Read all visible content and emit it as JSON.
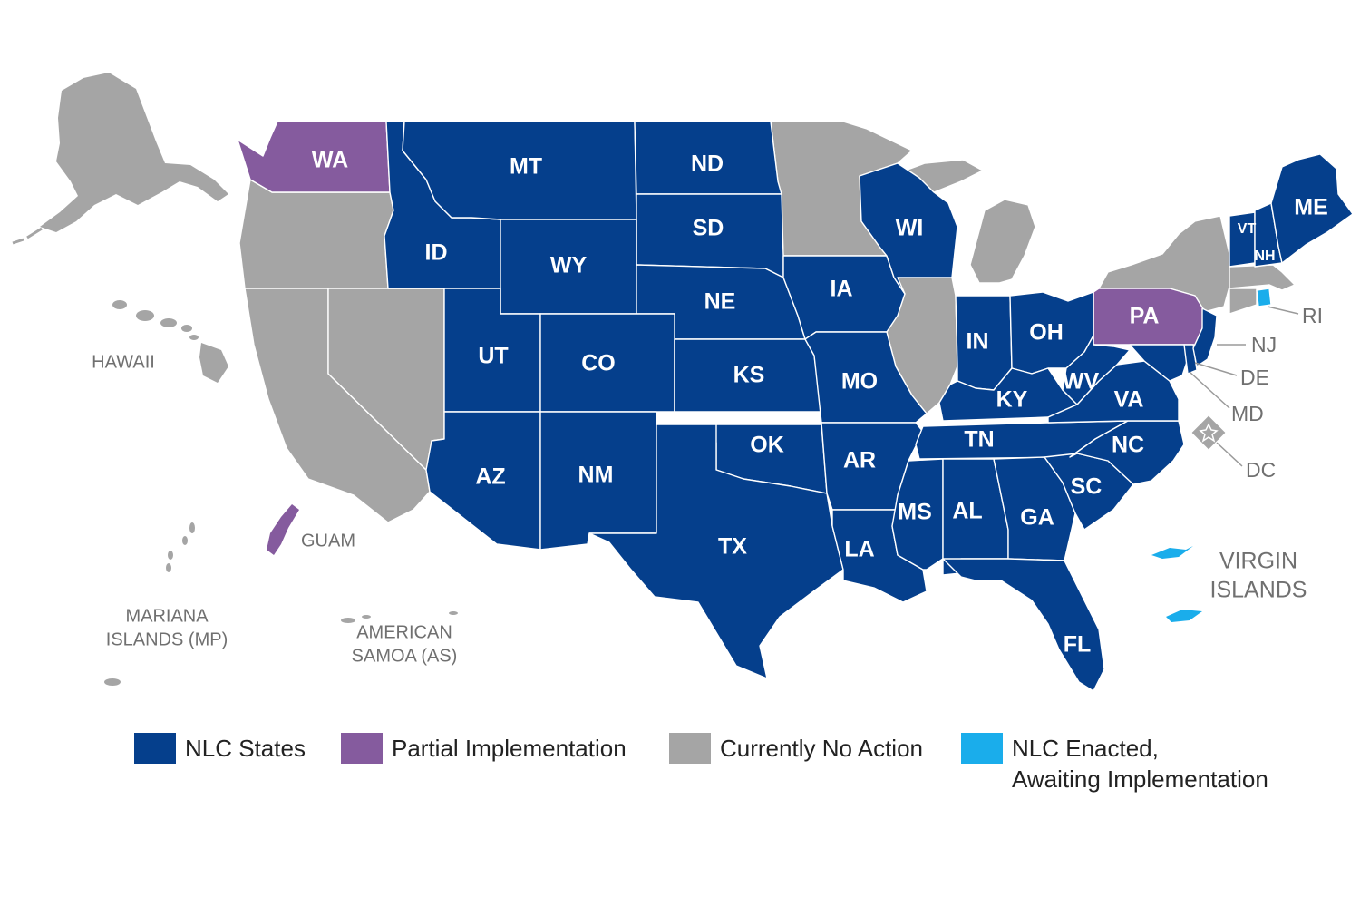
{
  "colors": {
    "nlc": "#053F8C",
    "partial": "#855B9E",
    "none": "#A5A5A5",
    "enacted": "#1AADEB"
  },
  "states": {
    "WA": "WA",
    "ID": "ID",
    "MT": "MT",
    "ND": "ND",
    "SD": "SD",
    "WY": "WY",
    "NE": "NE",
    "UT": "UT",
    "CO": "CO",
    "KS": "KS",
    "AZ": "AZ",
    "NM": "NM",
    "OK": "OK",
    "TX": "TX",
    "IA": "IA",
    "MO": "MO",
    "AR": "AR",
    "LA": "LA",
    "WI": "WI",
    "IN": "IN",
    "OH": "OH",
    "KY": "KY",
    "TN": "TN",
    "MS": "MS",
    "AL": "AL",
    "GA": "GA",
    "FL": "FL",
    "SC": "SC",
    "NC": "NC",
    "VA": "VA",
    "WV": "WV",
    "PA": "PA",
    "ME": "ME",
    "VT": "VT",
    "NH": "NH",
    "RI": "RI",
    "NJ": "NJ",
    "DE": "DE",
    "MD": "MD",
    "DC": "DC"
  },
  "territories": {
    "hawaii": "HAWAII",
    "guam": "GUAM",
    "mariana_1": "MARIANA",
    "mariana_2": "ISLANDS (MP)",
    "samoa_1": "AMERICAN",
    "samoa_2": "SAMOA (AS)",
    "vi_1": "VIRGIN",
    "vi_2": "ISLANDS"
  },
  "legend": [
    {
      "label": "NLC States",
      "color": "#053F8C"
    },
    {
      "label": "Partial Implementation",
      "color": "#855B9E"
    },
    {
      "label": "Currently No Action",
      "color": "#A5A5A5"
    },
    {
      "label": "NLC Enacted,",
      "label2": "Awaiting Implementation",
      "color": "#1AADEB"
    }
  ]
}
